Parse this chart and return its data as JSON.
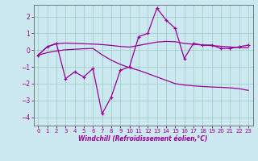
{
  "xlabel": "Windchill (Refroidissement éolien,°C)",
  "bg_color": "#cce8f0",
  "line_color": "#990099",
  "grid_color": "#99ccbb",
  "x": [
    0,
    1,
    2,
    3,
    4,
    5,
    6,
    7,
    8,
    9,
    10,
    11,
    12,
    13,
    14,
    15,
    16,
    17,
    18,
    19,
    20,
    21,
    22,
    23
  ],
  "y_main": [
    -0.3,
    0.2,
    0.4,
    -1.7,
    -1.3,
    -1.6,
    -1.1,
    -3.8,
    -2.8,
    -1.2,
    -1.0,
    0.8,
    1.0,
    2.5,
    1.8,
    1.3,
    -0.5,
    0.4,
    0.3,
    0.3,
    0.1,
    0.1,
    0.2,
    0.3
  ],
  "y_upper": [
    -0.3,
    0.2,
    0.38,
    0.42,
    0.4,
    0.38,
    0.36,
    0.33,
    0.28,
    0.22,
    0.18,
    0.28,
    0.38,
    0.48,
    0.52,
    0.5,
    0.4,
    0.35,
    0.3,
    0.27,
    0.23,
    0.19,
    0.15,
    0.14
  ],
  "y_lower": [
    -0.3,
    -0.15,
    -0.05,
    0.02,
    0.05,
    0.08,
    0.1,
    -0.28,
    -0.6,
    -0.85,
    -1.05,
    -1.2,
    -1.4,
    -1.6,
    -1.8,
    -2.0,
    -2.08,
    -2.13,
    -2.17,
    -2.2,
    -2.22,
    -2.25,
    -2.3,
    -2.4
  ],
  "ylim": [
    -4.5,
    2.7
  ],
  "yticks": [
    -4,
    -3,
    -2,
    -1,
    0,
    1,
    2
  ],
  "xticks": [
    0,
    1,
    2,
    3,
    4,
    5,
    6,
    7,
    8,
    9,
    10,
    11,
    12,
    13,
    14,
    15,
    16,
    17,
    18,
    19,
    20,
    21,
    22,
    23
  ]
}
